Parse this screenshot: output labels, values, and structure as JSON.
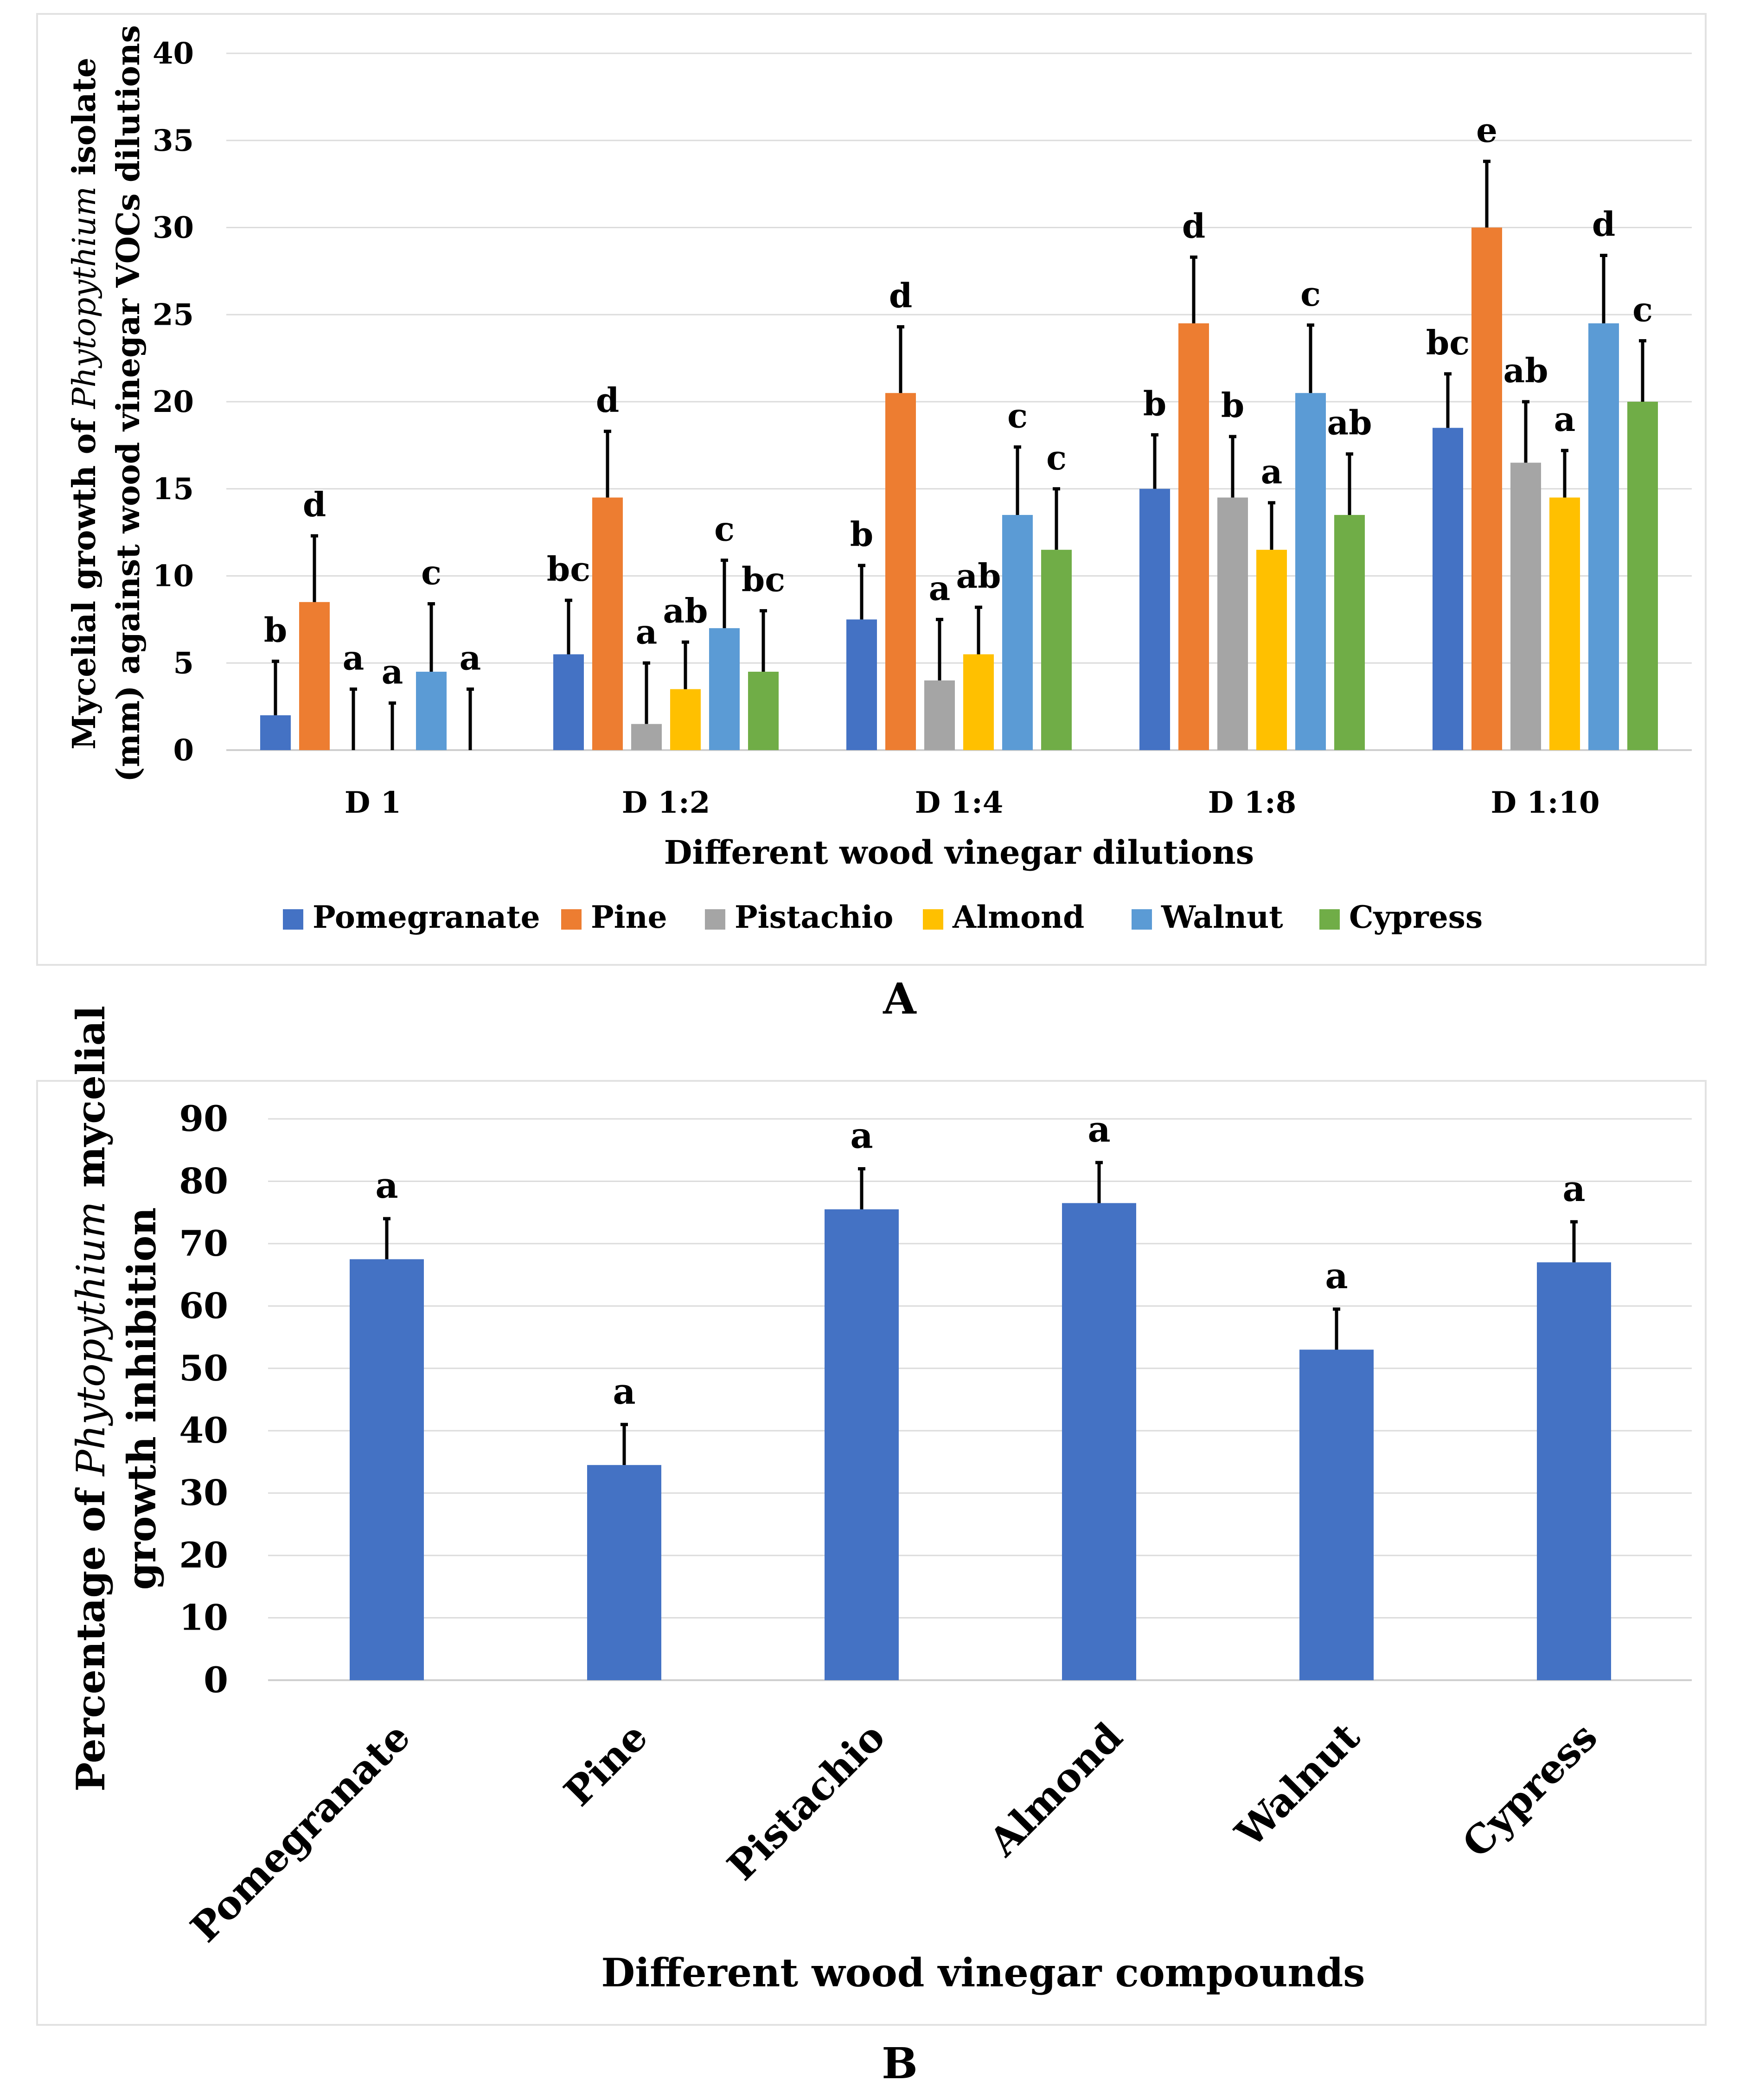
{
  "chart_data": [
    {
      "type": "bar",
      "panel_label": "A",
      "title": "",
      "xlabel": "Different wood vinegar dilutions",
      "ylabel_parts": [
        "Mycelial growth of ",
        "Phytopythium",
        " isolate"
      ],
      "ylabel_line2": "(mm) against wood vinegar VOCs dilutions",
      "ylim": [
        0,
        40
      ],
      "yticks": [
        0,
        5,
        10,
        15,
        20,
        25,
        30,
        35,
        40
      ],
      "grid": true,
      "legend_position": "bottom",
      "categories": [
        "D 1",
        "D 1:2",
        "D 1:4",
        "D 1:8",
        "D 1:10"
      ],
      "series": [
        {
          "name": "Pomegranate",
          "color": "#4472C4",
          "values": [
            2,
            5.5,
            7.5,
            15,
            18.5
          ],
          "errors": [
            3.1,
            3.1,
            3.1,
            3.1,
            3.1
          ],
          "letters": [
            "b",
            "bc",
            "b",
            "b",
            "bc"
          ]
        },
        {
          "name": "Pine",
          "color": "#ED7D31",
          "values": [
            8.5,
            14.5,
            20.5,
            24.5,
            30
          ],
          "errors": [
            3.8,
            3.8,
            3.8,
            3.8,
            3.8
          ],
          "letters": [
            "d",
            "d",
            "d",
            "d",
            "e"
          ]
        },
        {
          "name": "Pistachio",
          "color": "#A5A5A5",
          "values": [
            0,
            1.5,
            4,
            14.5,
            16.5
          ],
          "errors": [
            3.5,
            3.5,
            3.5,
            3.5,
            3.5
          ],
          "letters": [
            "a",
            "a",
            "a",
            "b",
            "ab"
          ]
        },
        {
          "name": "Almond",
          "color": "#FFC000",
          "values": [
            0,
            3.5,
            5.5,
            11.5,
            14.5
          ],
          "errors": [
            2.7,
            2.7,
            2.7,
            2.7,
            2.7
          ],
          "letters": [
            "a",
            "ab",
            "ab",
            "a",
            "a"
          ]
        },
        {
          "name": "Walnut",
          "color": "#5B9BD5",
          "values": [
            4.5,
            7,
            13.5,
            20.5,
            24.5
          ],
          "errors": [
            3.9,
            3.9,
            3.9,
            3.9,
            3.9
          ],
          "letters": [
            "c",
            "c",
            "c",
            "c",
            "d"
          ]
        },
        {
          "name": "Cypress",
          "color": "#70AD47",
          "values": [
            0,
            4.5,
            11.5,
            13.5,
            20
          ],
          "errors": [
            3.5,
            3.5,
            3.5,
            3.5,
            3.5
          ],
          "letters": [
            "a",
            "bc",
            "c",
            "ab",
            "c"
          ]
        }
      ]
    },
    {
      "type": "bar",
      "panel_label": "B",
      "title": "",
      "xlabel": "Different wood vinegar compounds",
      "ylabel_parts": [
        "Percentage of ",
        "Phytopythium",
        " mycelial"
      ],
      "ylabel_line2": "growth inhibition",
      "ylim": [
        0,
        90
      ],
      "yticks": [
        0,
        10,
        20,
        30,
        40,
        50,
        60,
        70,
        80,
        90
      ],
      "grid": true,
      "legend_position": "none",
      "categories": [
        "Pomegranate",
        "Pine",
        "Pistachio",
        "Almond",
        "Walnut",
        "Cypress"
      ],
      "series": [
        {
          "name": "Inhibition",
          "color": "#4472C4",
          "values": [
            67.5,
            34.5,
            75.5,
            76.5,
            53,
            67
          ],
          "errors": [
            6.5,
            6.5,
            6.5,
            6.5,
            6.5,
            6.5
          ],
          "letters": [
            "a",
            "a",
            "a",
            "a",
            "a",
            "a"
          ]
        }
      ]
    }
  ]
}
